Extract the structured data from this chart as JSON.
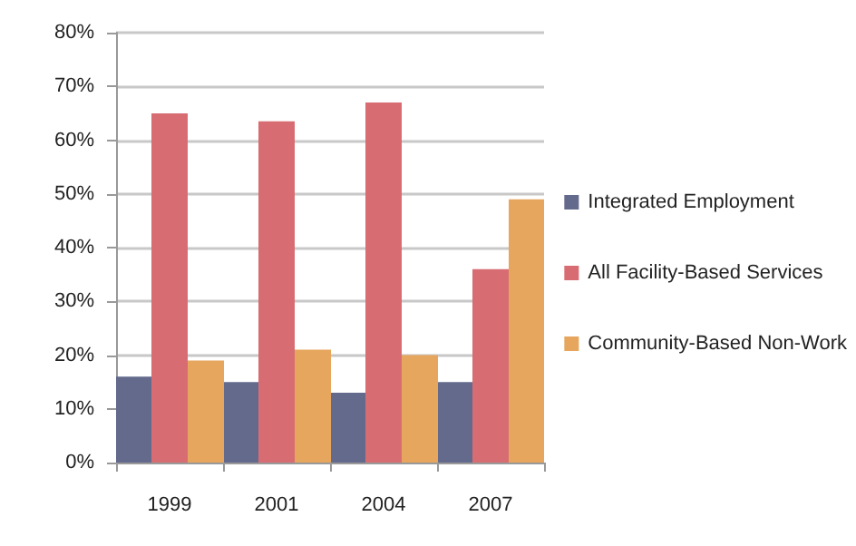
{
  "chart_data": {
    "type": "bar",
    "categories": [
      "1999",
      "2001",
      "2004",
      "2007"
    ],
    "series": [
      {
        "name": "Integrated Employment",
        "color": "#636a8c",
        "values": [
          16,
          15,
          13,
          15
        ]
      },
      {
        "name": "All Facility-Based Services",
        "color": "#d76d72",
        "values": [
          65,
          63.5,
          67,
          36
        ]
      },
      {
        "name": "Community-Based Non-Work",
        "color": "#e6a65d",
        "values": [
          19,
          21,
          20,
          49
        ]
      }
    ],
    "ylim": [
      0,
      80
    ],
    "yticks": [
      {
        "value": 0,
        "label": "0%"
      },
      {
        "value": 10,
        "label": "10%"
      },
      {
        "value": 20,
        "label": "20%"
      },
      {
        "value": 30,
        "label": "30%"
      },
      {
        "value": 40,
        "label": "40%"
      },
      {
        "value": 50,
        "label": "50%"
      },
      {
        "value": 60,
        "label": "60%"
      },
      {
        "value": 70,
        "label": "70%"
      },
      {
        "value": 80,
        "label": "80%"
      }
    ],
    "grid": "y",
    "legend": "right"
  }
}
